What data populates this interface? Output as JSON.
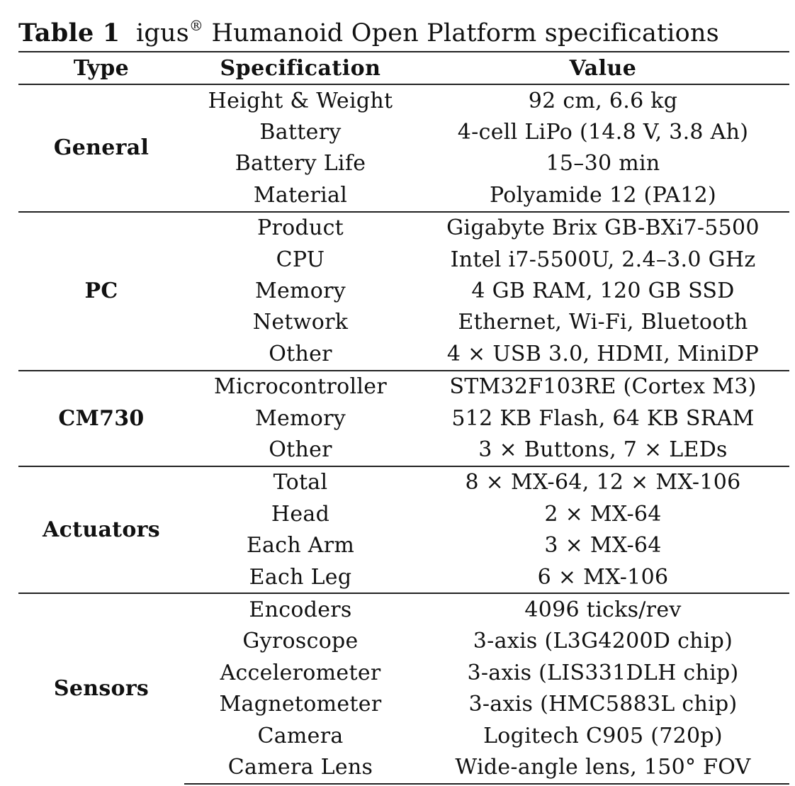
{
  "caption": {
    "label": "Table 1",
    "title_prefix": "igus",
    "registered_mark": "®",
    "title_suffix": " Humanoid Open Platform specifications"
  },
  "header": {
    "type": "Type",
    "specification": "Specification",
    "value": "Value"
  },
  "groups": [
    {
      "type": "General",
      "rows": [
        {
          "spec": "Height & Weight",
          "value": "92 cm, 6.6 kg"
        },
        {
          "spec": "Battery",
          "value": "4-cell LiPo (14.8 V, 3.8 Ah)"
        },
        {
          "spec": "Battery Life",
          "value": "15–30 min"
        },
        {
          "spec": "Material",
          "value": "Polyamide 12 (PA12)"
        }
      ]
    },
    {
      "type": "PC",
      "rows": [
        {
          "spec": "Product",
          "value": "Gigabyte Brix GB-BXi7-5500"
        },
        {
          "spec": "CPU",
          "value": "Intel i7-5500U, 2.4–3.0 GHz"
        },
        {
          "spec": "Memory",
          "value": "4 GB RAM, 120 GB SSD"
        },
        {
          "spec": "Network",
          "value": "Ethernet, Wi-Fi, Bluetooth"
        },
        {
          "spec": "Other",
          "value": "4 × USB 3.0, HDMI, MiniDP"
        }
      ]
    },
    {
      "type": "CM730",
      "rows": [
        {
          "spec": "Microcontroller",
          "value": "STM32F103RE (Cortex M3)"
        },
        {
          "spec": "Memory",
          "value": "512 KB Flash, 64 KB SRAM"
        },
        {
          "spec": "Other",
          "value": "3 × Buttons, 7 × LEDs"
        }
      ]
    },
    {
      "type": "Actuators",
      "rows": [
        {
          "spec": "Total",
          "value": "8 × MX-64, 12 × MX-106"
        },
        {
          "spec": "Head",
          "value": "2 × MX-64"
        },
        {
          "spec": "Each Arm",
          "value": "3 × MX-64"
        },
        {
          "spec": "Each Leg",
          "value": "6 × MX-106"
        }
      ]
    },
    {
      "type": "Sensors",
      "rows": [
        {
          "spec": "Encoders",
          "value": "4096 ticks/rev"
        },
        {
          "spec": "Gyroscope",
          "value": "3-axis (L3G4200D chip)"
        },
        {
          "spec": "Accelerometer",
          "value": "3-axis (LIS331DLH chip)"
        },
        {
          "spec": "Magnetometer",
          "value": "3-axis (HMC5883L chip)"
        },
        {
          "spec": "Camera",
          "value": "Logitech C905 (720p)"
        },
        {
          "spec": "Camera Lens",
          "value": "Wide-angle lens, 150° FOV"
        }
      ]
    }
  ]
}
